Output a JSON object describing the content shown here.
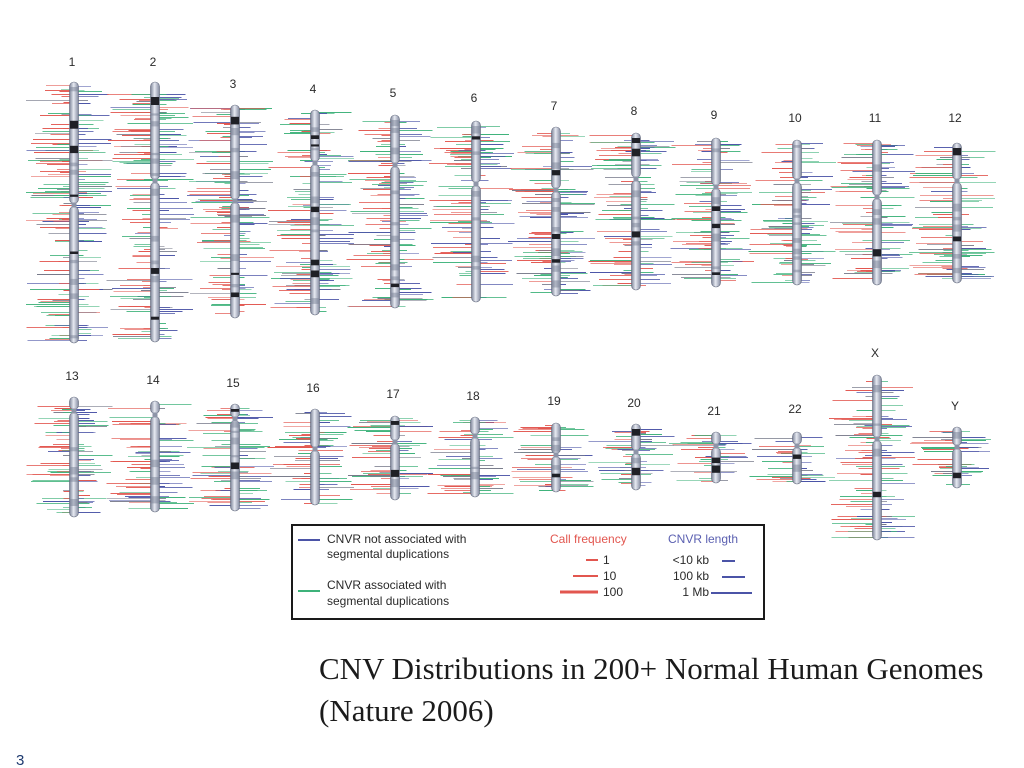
{
  "slide": {
    "caption_line1": "CNV Distributions in 200+ Normal Human Genomes",
    "caption_line2": "(Nature 2006)",
    "slide_number": "3"
  },
  "figure": {
    "chromosomes": [
      "1",
      "2",
      "3",
      "4",
      "5",
      "6",
      "7",
      "8",
      "9",
      "10",
      "11",
      "12",
      "13",
      "14",
      "15",
      "16",
      "17",
      "18",
      "19",
      "20",
      "21",
      "22",
      "X",
      "Y"
    ],
    "legend": {
      "not_associated": [
        "CNVR not associated with",
        "segmental duplications"
      ],
      "associated": [
        "CNVR associated with",
        "segmental duplications"
      ],
      "call_frequency": {
        "title": "Call frequency",
        "levels": [
          "1",
          "10",
          "100"
        ]
      },
      "cnvr_length": {
        "title": "CNVR length",
        "levels": [
          "<10 kb",
          "100 kb",
          "1 Mb"
        ]
      }
    }
  },
  "colors": {
    "call_frequency": "#e2564f",
    "segdup": "#3eb27a",
    "not_segdup": "#4b54a7",
    "cnvr_length": "#5b60b1",
    "neutral": "#777a8a"
  }
}
